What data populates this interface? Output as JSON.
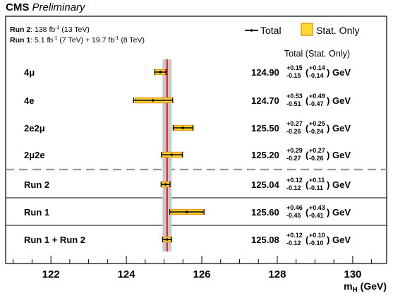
{
  "header": {
    "experiment": "CMS",
    "status": "Preliminary"
  },
  "chart_data": {
    "type": "scatter",
    "luminosity": [
      {
        "label": "Run 2",
        "text_parts": [
          ": 138 fb",
          "-1",
          " (13 TeV)"
        ]
      },
      {
        "label": "Run 1",
        "text_parts": [
          ": 5.1 fb",
          "-1",
          " (7 TeV) + 19.7 fb",
          "-1",
          " (8 TeV)"
        ]
      }
    ],
    "legend": {
      "total": "Total",
      "stat": "Stat. Only"
    },
    "column_header": "Total  (Stat. Only)",
    "xlabel": {
      "main": "m",
      "sub": "H",
      "unit": " (GeV)"
    },
    "xlim": [
      120.8,
      130.9
    ],
    "xticks": [
      122,
      124,
      126,
      128,
      130
    ],
    "combined_band": {
      "center": 125.08,
      "low": 124.96,
      "high": 125.2,
      "line": 125.08
    },
    "unit": "GeV",
    "measurements": [
      {
        "label": "4μ",
        "value": 124.9,
        "tot_up": 0.15,
        "tot_dn": 0.15,
        "stat_up": 0.14,
        "stat_dn": 0.14,
        "value_text": "124.90",
        "tot_up_text": "+0.15",
        "tot_dn_text": "-0.15",
        "stat_up_text": "+0.14",
        "stat_dn_text": "-0.14"
      },
      {
        "label": "4e",
        "value": 124.7,
        "tot_up": 0.53,
        "tot_dn": 0.51,
        "stat_up": 0.49,
        "stat_dn": 0.47,
        "value_text": "124.70",
        "tot_up_text": "+0.53",
        "tot_dn_text": "-0.51",
        "stat_up_text": "+0.49",
        "stat_dn_text": "-0.47"
      },
      {
        "label": "2e2μ",
        "value": 125.5,
        "tot_up": 0.27,
        "tot_dn": 0.26,
        "stat_up": 0.25,
        "stat_dn": 0.24,
        "value_text": "125.50",
        "tot_up_text": "+0.27",
        "tot_dn_text": "-0.26",
        "stat_up_text": "+0.25",
        "stat_dn_text": "-0.24"
      },
      {
        "label": "2μ2e",
        "value": 125.2,
        "tot_up": 0.29,
        "tot_dn": 0.27,
        "stat_up": 0.27,
        "stat_dn": 0.26,
        "value_text": "125.20",
        "tot_up_text": "+0.29",
        "tot_dn_text": "-0.27",
        "stat_up_text": "+0.27",
        "stat_dn_text": "-0.26"
      },
      {
        "label": "Run 2",
        "value": 125.04,
        "tot_up": 0.12,
        "tot_dn": 0.12,
        "stat_up": 0.11,
        "stat_dn": 0.11,
        "value_text": "125.04",
        "tot_up_text": "+0.12",
        "tot_dn_text": "-0.12",
        "stat_up_text": "+0.11",
        "stat_dn_text": "-0.11"
      },
      {
        "label": "Run 1",
        "value": 125.6,
        "tot_up": 0.46,
        "tot_dn": 0.45,
        "stat_up": 0.43,
        "stat_dn": 0.41,
        "value_text": "125.60",
        "tot_up_text": "+0.46",
        "tot_dn_text": "-0.45",
        "stat_up_text": "+0.43",
        "stat_dn_text": "-0.41"
      },
      {
        "label": "Run 1 + Run 2",
        "value": 125.08,
        "tot_up": 0.12,
        "tot_dn": 0.12,
        "stat_up": 0.1,
        "stat_dn": 0.1,
        "value_text": "125.08",
        "tot_up_text": "+0.12",
        "tot_dn_text": "-0.12",
        "stat_up_text": "+0.10",
        "stat_dn_text": "-0.10"
      }
    ],
    "colors": {
      "stat_fill": "#fdd835",
      "stat_edge": "#e89a1a",
      "band": "#c8c8c8",
      "center_line": "#e8141c",
      "marker": "#000000"
    }
  }
}
